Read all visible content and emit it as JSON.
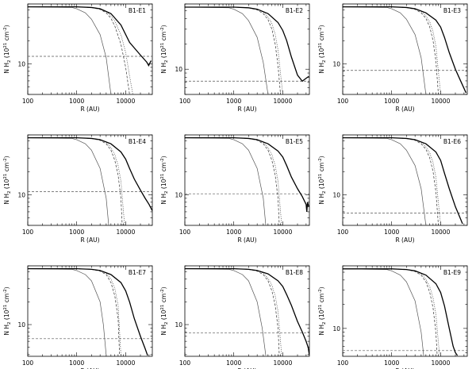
{
  "chart_data": {
    "type": "line",
    "layout": "3x3 grid of panels",
    "x_scale": "log",
    "y_scale": "log",
    "xlabel": "R (AU)",
    "ylabel": "N H<sub>2</sub> (10<sup>21</sup> cm<sup>-2</sup>)",
    "ylabel_parts": {
      "pre": "N H",
      "sub": "2",
      "mid": " (10",
      "sup1": "21",
      "mid2": " cm",
      "sup2": "-2",
      "post": ")"
    },
    "xlim": [
      100,
      35000
    ],
    "x_ticks": [
      100,
      1000,
      10000
    ],
    "x_tick_labels": [
      "100",
      "1000",
      "10000"
    ],
    "y_ticks": [
      10
    ],
    "y_tick_labels": [
      "10"
    ],
    "grid": false,
    "legend": "none",
    "series_styles": [
      {
        "role": "observed profile",
        "style": "thick solid"
      },
      {
        "role": "model 1",
        "style": "thin solid"
      },
      {
        "role": "model 2",
        "style": "dashed"
      },
      {
        "role": "model 3",
        "style": "dotted"
      },
      {
        "role": "background level",
        "style": "horizontal dashed"
      }
    ],
    "panels": [
      {
        "title": "B1-E1",
        "ylim": [
          4,
          60
        ],
        "obs": {
          "x": [
            100,
            1000,
            2000,
            3000,
            5000,
            8000,
            12000,
            20000,
            27000,
            29500,
            33000
          ],
          "y": [
            55,
            55,
            54,
            52,
            45,
            32,
            19,
            13,
            10.5,
            9.5,
            11
          ]
        },
        "model_solid": {
          "x": [
            100,
            800,
            1000,
            1500,
            2000,
            3000,
            4000,
            5000
          ],
          "y": [
            55,
            54,
            52,
            46,
            38,
            24,
            12,
            4
          ]
        },
        "model_dashed": {
          "x": [
            100,
            1000,
            2000,
            3000,
            4000,
            5000,
            6000,
            8000,
            10000,
            12000
          ],
          "y": [
            55,
            55,
            54,
            51,
            46,
            39,
            31,
            18,
            9,
            4
          ]
        },
        "model_dotted": {
          "x": [
            100,
            1000,
            2000,
            3000,
            4000,
            5000,
            6000,
            8000,
            10000,
            12000,
            14000
          ],
          "y": [
            55,
            55,
            54,
            52,
            48,
            42,
            36,
            24,
            14,
            7,
            4
          ]
        },
        "background": 12.5
      },
      {
        "title": "B1-E2",
        "ylim": [
          5,
          60
        ],
        "obs": {
          "x": [
            100,
            1000,
            2000,
            3000,
            5000,
            8000,
            10000,
            12000,
            15000,
            20000,
            25000,
            30000,
            34000
          ],
          "y": [
            55,
            55,
            54,
            52,
            46,
            36,
            29,
            22,
            14,
            8.5,
            7.2,
            7.8,
            8.2
          ]
        },
        "model_solid": {
          "x": [
            100,
            800,
            1000,
            1500,
            2000,
            3000,
            4000,
            5000
          ],
          "y": [
            55,
            54,
            52,
            46,
            38,
            24,
            12,
            5
          ]
        },
        "model_dashed": {
          "x": [
            100,
            1000,
            2000,
            3000,
            4000,
            5000,
            6000,
            7000,
            8000,
            9000
          ],
          "y": [
            55,
            55,
            54,
            51,
            46,
            39,
            30,
            20,
            11,
            5
          ]
        },
        "model_dotted": {
          "x": [
            100,
            1000,
            2000,
            3000,
            4000,
            5000,
            6000,
            7000,
            8000,
            10000
          ],
          "y": [
            55,
            55,
            54,
            52,
            48,
            42,
            35,
            26,
            17,
            5
          ]
        },
        "background": 7.2
      },
      {
        "title": "B1-E3",
        "ylim": [
          4,
          60
        ],
        "obs": {
          "x": [
            100,
            1000,
            2000,
            3000,
            5000,
            8000,
            10000,
            12000,
            15000,
            20000,
            25000,
            30000,
            33000
          ],
          "y": [
            55,
            55,
            54,
            52,
            46,
            37,
            30,
            22,
            14,
            8.5,
            6.2,
            4.8,
            4.2
          ]
        },
        "model_solid": {
          "x": [
            100,
            800,
            1000,
            1500,
            2000,
            3000,
            4000,
            5000
          ],
          "y": [
            55,
            54,
            52,
            46,
            38,
            24,
            12,
            4
          ]
        },
        "model_dashed": {
          "x": [
            100,
            1000,
            2000,
            3000,
            4000,
            5000,
            6000,
            7000,
            8000,
            9000
          ],
          "y": [
            55,
            55,
            54,
            51,
            46,
            39,
            30,
            20,
            11,
            4
          ]
        },
        "model_dotted": {
          "x": [
            100,
            1000,
            2000,
            3000,
            4000,
            5000,
            6000,
            7000,
            8000,
            10000
          ],
          "y": [
            55,
            55,
            54,
            52,
            48,
            42,
            35,
            26,
            17,
            4
          ]
        },
        "background": 8.2
      },
      {
        "title": "B1-E4",
        "ylim": [
          4,
          60
        ],
        "obs": {
          "x": [
            100,
            1000,
            2000,
            3000,
            5000,
            8000,
            10000,
            12000,
            15000,
            20000,
            25000,
            30000,
            35000
          ],
          "y": [
            55,
            55,
            54,
            52,
            46,
            36,
            29,
            22,
            16,
            11.5,
            9,
            7.5,
            6.2
          ]
        },
        "model_solid": {
          "x": [
            100,
            800,
            1000,
            1500,
            2000,
            3000,
            4000,
            4500
          ],
          "y": [
            55,
            54,
            52,
            46,
            38,
            22,
            9,
            4
          ]
        },
        "model_dashed": {
          "x": [
            100,
            1000,
            2000,
            3000,
            4000,
            5000,
            6000,
            7000,
            8000,
            8500
          ],
          "y": [
            55,
            55,
            54,
            51,
            46,
            38,
            28,
            18,
            9,
            4
          ]
        },
        "model_dotted": {
          "x": [
            100,
            1000,
            2000,
            3000,
            4000,
            5000,
            6000,
            7000,
            8000,
            9500
          ],
          "y": [
            55,
            55,
            54,
            52,
            48,
            41,
            33,
            24,
            15,
            4
          ]
        },
        "background": 11
      },
      {
        "title": "B1-E5",
        "ylim": [
          4,
          60
        ],
        "obs": {
          "x": [
            100,
            1000,
            2000,
            3000,
            5000,
            8000,
            10000,
            12000,
            15000,
            20000,
            25000,
            30000,
            31000,
            32000,
            34000
          ],
          "y": [
            55,
            55,
            54,
            52,
            46,
            37,
            31,
            24,
            17,
            12,
            9.5,
            7.5,
            6,
            8,
            7
          ]
        },
        "model_solid": {
          "x": [
            100,
            800,
            1000,
            1500,
            2000,
            3000,
            4000,
            4500
          ],
          "y": [
            55,
            54,
            52,
            46,
            38,
            22,
            9,
            4
          ]
        },
        "model_dashed": {
          "x": [
            100,
            1000,
            2000,
            3000,
            4000,
            5000,
            6000,
            7000,
            8000,
            8500
          ],
          "y": [
            55,
            55,
            54,
            51,
            46,
            38,
            28,
            18,
            9,
            4
          ]
        },
        "model_dotted": {
          "x": [
            100,
            1000,
            2000,
            3000,
            4000,
            5000,
            6000,
            7000,
            8000,
            9500
          ],
          "y": [
            55,
            55,
            54,
            52,
            48,
            41,
            33,
            24,
            15,
            4
          ]
        },
        "background": 10.3
      },
      {
        "title": "B1-E6",
        "ylim": [
          4,
          60
        ],
        "obs": {
          "x": [
            100,
            1000,
            2000,
            3000,
            5000,
            8000,
            10000,
            12000,
            15000,
            20000,
            25000,
            28000
          ],
          "y": [
            55,
            55,
            54,
            52,
            46,
            36,
            28,
            19,
            12,
            7,
            5,
            4.2
          ]
        },
        "model_solid": {
          "x": [
            100,
            800,
            1000,
            1500,
            2000,
            3000,
            4000,
            5000
          ],
          "y": [
            55,
            54,
            52,
            46,
            38,
            24,
            12,
            4
          ]
        },
        "model_dashed": {
          "x": [
            100,
            1000,
            2000,
            3000,
            4000,
            5000,
            6000,
            7000,
            8000,
            9000
          ],
          "y": [
            55,
            55,
            54,
            51,
            46,
            39,
            30,
            20,
            11,
            4
          ]
        },
        "model_dotted": {
          "x": [
            100,
            1000,
            2000,
            3000,
            4000,
            5000,
            6000,
            7000,
            8000,
            10000
          ],
          "y": [
            55,
            55,
            54,
            52,
            48,
            42,
            35,
            26,
            17,
            4
          ]
        },
        "background": 5.8
      },
      {
        "title": "B1-E7",
        "ylim": [
          3.8,
          60
        ],
        "obs": {
          "x": [
            100,
            1000,
            2000,
            3000,
            5000,
            8000,
            10000,
            12000,
            15000,
            20000,
            25000,
            28000
          ],
          "y": [
            55,
            55,
            54,
            52,
            46,
            36,
            28,
            20,
            12,
            7,
            4.8,
            3.9
          ]
        },
        "model_solid": {
          "x": [
            100,
            800,
            1000,
            1500,
            2000,
            3000,
            3500,
            4000
          ],
          "y": [
            55,
            54,
            52,
            46,
            38,
            20,
            10,
            3.9
          ]
        },
        "model_dashed": {
          "x": [
            100,
            1000,
            2000,
            3000,
            4000,
            5000,
            6000,
            7000,
            7500
          ],
          "y": [
            55,
            55,
            54,
            51,
            46,
            36,
            24,
            12,
            3.9
          ]
        },
        "model_dotted": {
          "x": [
            100,
            1000,
            2000,
            3000,
            4000,
            5000,
            6000,
            7000,
            8000
          ],
          "y": [
            55,
            55,
            54,
            52,
            48,
            40,
            30,
            18,
            3.9
          ]
        },
        "background": 6.5
      },
      {
        "title": "B1-E8",
        "ylim": [
          3.8,
          60
        ],
        "obs": {
          "x": [
            100,
            1000,
            2000,
            3000,
            5000,
            8000,
            10000,
            12000,
            15000,
            20000,
            25000,
            30000,
            33000,
            35000
          ],
          "y": [
            55,
            55,
            54,
            52,
            47,
            38,
            32,
            25,
            18,
            11,
            8,
            6,
            5,
            3.9
          ]
        },
        "model_solid": {
          "x": [
            100,
            800,
            1000,
            1500,
            2000,
            3000,
            3800,
            4500
          ],
          "y": [
            55,
            54,
            52,
            46,
            38,
            20,
            9,
            3.9
          ]
        },
        "model_dashed": {
          "x": [
            100,
            1000,
            2000,
            3000,
            4000,
            5000,
            6000,
            7000,
            8000,
            8500
          ],
          "y": [
            55,
            55,
            54,
            51,
            46,
            38,
            28,
            18,
            9,
            3.9
          ]
        },
        "model_dotted": {
          "x": [
            100,
            1000,
            2000,
            3000,
            4000,
            5000,
            6000,
            7000,
            8000,
            9500
          ],
          "y": [
            55,
            55,
            54,
            52,
            48,
            41,
            33,
            24,
            15,
            3.9
          ]
        },
        "background": 7.8
      },
      {
        "title": "B1-E9",
        "ylim": [
          4.5,
          60
        ],
        "obs": {
          "x": [
            100,
            1000,
            2000,
            3000,
            5000,
            8000,
            10000,
            12000,
            15000,
            18000,
            20000,
            22000
          ],
          "y": [
            55,
            55,
            54,
            52,
            46,
            36,
            28,
            19,
            10,
            6,
            5,
            4.6
          ]
        },
        "model_solid": {
          "x": [
            100,
            800,
            1000,
            1500,
            2000,
            3000,
            4000,
            4500
          ],
          "y": [
            55,
            54,
            52,
            46,
            38,
            22,
            9,
            4.6
          ]
        },
        "model_dashed": {
          "x": [
            100,
            1000,
            2000,
            3000,
            4000,
            5000,
            6000,
            7000,
            8000,
            8500
          ],
          "y": [
            55,
            55,
            54,
            51,
            46,
            38,
            28,
            18,
            9,
            4.6
          ]
        },
        "model_dotted": {
          "x": [
            100,
            1000,
            2000,
            3000,
            4000,
            5000,
            6000,
            7000,
            8000,
            9500
          ],
          "y": [
            55,
            55,
            54,
            52,
            48,
            41,
            33,
            24,
            15,
            4.6
          ]
        },
        "background": 5.3
      }
    ]
  }
}
